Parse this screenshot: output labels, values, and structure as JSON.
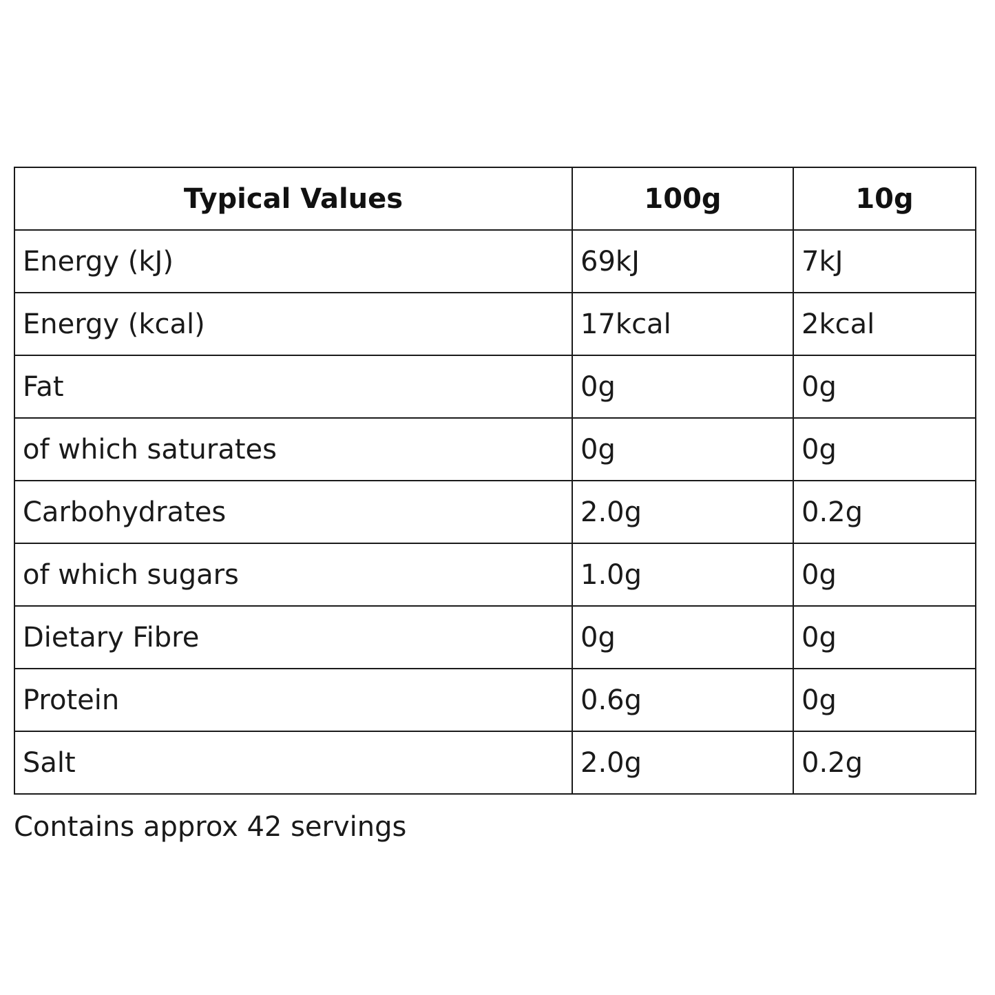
{
  "table": {
    "headers": [
      "Typical Values",
      "100g",
      "10g"
    ],
    "rows": [
      [
        "Energy (kJ)",
        "69kJ",
        "7kJ"
      ],
      [
        "Energy (kcal)",
        "17kcal",
        "2kcal"
      ],
      [
        "Fat",
        "0g",
        "0g"
      ],
      [
        "of which saturates",
        "0g",
        "0g"
      ],
      [
        "Carbohydrates",
        "2.0g",
        "0.2g"
      ],
      [
        "of which sugars",
        "1.0g",
        "0g"
      ],
      [
        "Dietary Fibre",
        "0g",
        "0g"
      ],
      [
        "Protein",
        "0.6g",
        "0g"
      ],
      [
        "Salt",
        "2.0g",
        "0.2g"
      ]
    ]
  },
  "footnote": "Contains approx 42 servings",
  "colors": {
    "text": "#1a1a1a",
    "border": "#1a1a1a",
    "background": "#ffffff"
  }
}
